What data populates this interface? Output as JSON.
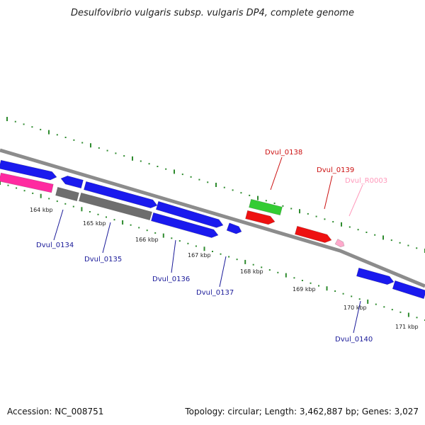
{
  "title": "Desulfovibrio vulgaris subsp. vulgaris DP4, complete genome",
  "footer": {
    "accession": "Accession: NC_008751",
    "topology": "Topology: circular; Length: 3,462,887 bp; Genes: 3,027"
  },
  "colors": {
    "background": "#ffffff",
    "backbone": "#8c8c8c",
    "tick_dots": "#2e8b2e",
    "cds_blue": "#1a1aee",
    "cds_gray": "#6e6e6e",
    "cds_pink": "#ff2aa0",
    "cds_red": "#ee1111",
    "cds_green": "#33cc33",
    "rna_pink": "#ffaacc",
    "label_blue": "#1a1a99",
    "label_red": "#cc1111",
    "label_pink": "#ff99bb"
  },
  "scale_labels": [
    "164 kbp",
    "165 kbp",
    "166 kbp",
    "167 kbp",
    "168 kbp",
    "169 kbp",
    "170 kbp",
    "171 kbp"
  ],
  "gene_labels": [
    {
      "name": "Dvul_0134",
      "color": "blue"
    },
    {
      "name": "Dvul_0135",
      "color": "blue"
    },
    {
      "name": "Dvul_0136",
      "color": "blue"
    },
    {
      "name": "Dvul_0137",
      "color": "blue"
    },
    {
      "name": "Dvul_0138",
      "color": "red"
    },
    {
      "name": "Dvul_0139",
      "color": "red"
    },
    {
      "name": "Dvul_R0003",
      "color": "pink"
    },
    {
      "name": "Dvul_0140",
      "color": "blue"
    }
  ]
}
